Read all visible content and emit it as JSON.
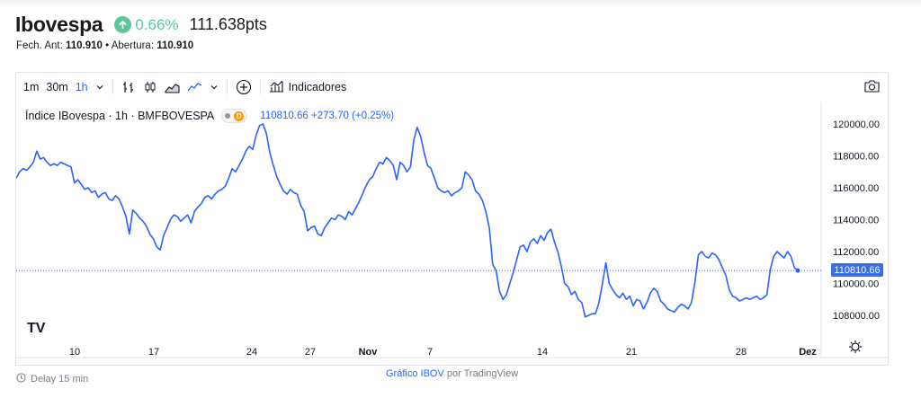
{
  "header": {
    "title": "Ibovespa",
    "change": "0.66%",
    "price": "111.638pts"
  },
  "subline": {
    "prev_close_label": "Fech. Ant:",
    "prev_close_value": "110.910",
    "separator": "•",
    "open_label": "Abertura:",
    "open_value": "110.910"
  },
  "toolbar": {
    "intervals": [
      "1m",
      "30m",
      "1h"
    ],
    "active_interval": "1h",
    "indicators_label": "Indicadores"
  },
  "legend": {
    "symbol": "Índice IBovespa · 1h · BMFBOVESPA",
    "badge": "D",
    "last_value": "110810.66",
    "change": "+273.70 (+0.25%)"
  },
  "price_label": "110810.66",
  "footer": {
    "delay": "Delay 15 min",
    "credit_link": "Gráfico IBOV",
    "credit_rest": " por TradingView"
  },
  "colors": {
    "line": "#2962ff",
    "up": "#5cc69a",
    "accent": "#2962ff"
  },
  "chart_data": {
    "type": "line",
    "y_ticks": [
      "120000.00",
      "118000.00",
      "116000.00",
      "114000.00",
      "112000.00",
      "110000.00",
      "108000.00"
    ],
    "x_ticks": [
      "10",
      "17",
      "24",
      "27",
      "Nov",
      "7",
      "14",
      "21",
      "28",
      "Dez"
    ],
    "ylim": [
      107000,
      121000
    ],
    "last_price": 110810.66,
    "series": [
      {
        "values": [
          116600,
          117000,
          117200,
          117100,
          117300,
          117600,
          118300,
          117800,
          117900,
          117600,
          117400,
          117500,
          117400,
          117600,
          117500,
          117400,
          117300,
          116300,
          116500,
          116200,
          115900,
          116000,
          115700,
          115800,
          115400,
          115600,
          115700,
          115300,
          115200,
          115500,
          115300,
          114800,
          114200,
          113100,
          114600,
          114400,
          114100,
          113900,
          113600,
          113100,
          112800,
          112300,
          112100,
          113000,
          113500,
          114000,
          114300,
          114200,
          113900,
          114100,
          114300,
          113800,
          114500,
          114800,
          115000,
          115400,
          115500,
          115300,
          115600,
          115800,
          115900,
          116100,
          116600,
          117200,
          117000,
          117400,
          117800,
          118300,
          118600,
          118400,
          119300,
          119900,
          120000,
          119400,
          118200,
          117400,
          116700,
          116200,
          115800,
          115600,
          115900,
          115700,
          115600,
          114900,
          114500,
          113300,
          113500,
          113600,
          113100,
          113000,
          113500,
          113800,
          114100,
          114000,
          114300,
          114200,
          114000,
          114500,
          114300,
          114700,
          115100,
          115600,
          116100,
          116500,
          116700,
          117200,
          117600,
          117500,
          117900,
          117700,
          117400,
          116500,
          117600,
          117400,
          117000,
          117300,
          119000,
          119800,
          119200,
          118200,
          117400,
          117200,
          116600,
          116000,
          115800,
          115700,
          115800,
          115500,
          115700,
          115800,
          116000,
          117000,
          116800,
          116500,
          115800,
          115600,
          115200,
          114500,
          113500,
          111200,
          110800,
          109500,
          109000,
          109300,
          110000,
          110700,
          111500,
          112300,
          112400,
          112000,
          112600,
          112800,
          112500,
          113000,
          112700,
          113200,
          113400,
          112600,
          112000,
          111100,
          110000,
          109800,
          109300,
          109500,
          109000,
          108800,
          107900,
          108000,
          108100,
          108100,
          108800,
          110000,
          111300,
          110000,
          109600,
          109300,
          109100,
          109400,
          109000,
          109200,
          108600,
          109000,
          108900,
          108400,
          108800,
          109400,
          109700,
          109500,
          108900,
          108700,
          108400,
          108300,
          108200,
          108500,
          108700,
          108600,
          108400,
          108800,
          110100,
          111800,
          112000,
          111700,
          111600,
          111900,
          111800,
          111500,
          111000,
          110500,
          109600,
          109200,
          109100,
          108900,
          109000,
          109100,
          109000,
          109100,
          109200,
          109000,
          109100,
          109300,
          110900,
          111700,
          112000,
          111800,
          111600,
          112000,
          111700,
          111000,
          110810
        ]
      }
    ]
  }
}
